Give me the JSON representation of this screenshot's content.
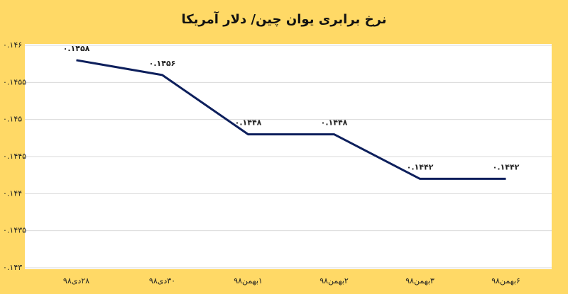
{
  "chart_data": {
    "type": "line",
    "title": "نرخ برابری یوان چین/ دلار آمریکا",
    "categories": [
      "۲۸دی۹۸",
      "۳۰دی۹۸",
      "۱بهمن۹۸",
      "۲بهمن۹۸",
      "۳بهمن۹۸",
      "۶بهمن۹۸"
    ],
    "values": [
      0.1458,
      0.1456,
      0.1448,
      0.1448,
      0.1442,
      0.1442
    ],
    "value_labels": [
      "۰.۱۴۵۸",
      "۰.۱۴۵۶",
      "۰.۱۴۴۸",
      "۰.۱۴۴۸",
      "۰.۱۴۴۲",
      "۰.۱۴۴۲"
    ],
    "color": "#0d1f5c",
    "ylim": [
      0.143,
      0.146
    ],
    "yticks": [
      {
        "value": 0.143,
        "label": "۰.۱۴۳"
      },
      {
        "value": 0.1435,
        "label": "۰.۱۴۳۵"
      },
      {
        "value": 0.144,
        "label": "۰.۱۴۴"
      },
      {
        "value": 0.1445,
        "label": "۰.۱۴۴۵"
      },
      {
        "value": 0.145,
        "label": "۰.۱۴۵"
      },
      {
        "value": 0.1455,
        "label": "۰.۱۴۵۵"
      },
      {
        "value": 0.146,
        "label": "۰.۱۴۶"
      }
    ],
    "grid": true
  }
}
